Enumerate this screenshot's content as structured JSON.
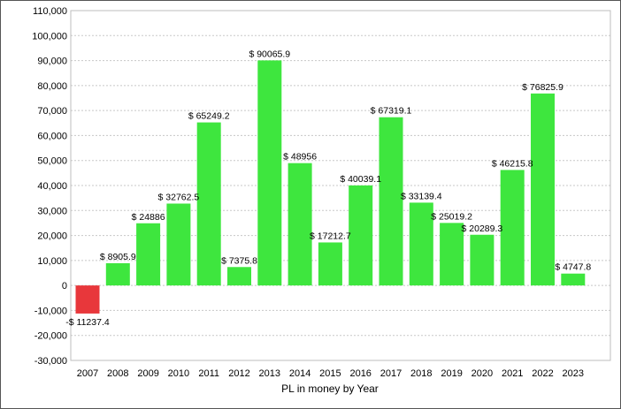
{
  "chart_data": {
    "type": "bar",
    "title": "",
    "xlabel": "PL in money by Year",
    "ylabel": "",
    "ylim": [
      -30000,
      110000
    ],
    "ytick_step": 10000,
    "yticks": [
      "-30,000",
      "-20,000",
      "-10,000",
      "0",
      "10,000",
      "20,000",
      "30,000",
      "40,000",
      "50,000",
      "60,000",
      "70,000",
      "80,000",
      "90,000",
      "100,000",
      "110,000"
    ],
    "grid": true,
    "legend": "none",
    "colors": {
      "positive": "#3ee63e",
      "negative": "#e8373b"
    },
    "categories": [
      "2007",
      "2008",
      "2009",
      "2010",
      "2011",
      "2012",
      "2013",
      "2014",
      "2015",
      "2016",
      "2017",
      "2018",
      "2019",
      "2020",
      "2021",
      "2022",
      "2023"
    ],
    "values": [
      -11237.4,
      8905.9,
      24886,
      32762.5,
      65249.2,
      7375.8,
      90065.9,
      48956,
      17212.7,
      40039.1,
      67319.1,
      33139.4,
      25019.2,
      20289.3,
      46215.8,
      76825.9,
      4747.8
    ],
    "data_labels": [
      "-$ 11237.4",
      "$ 8905.9",
      "$ 24886",
      "$ 32762.5",
      "$ 65249.2",
      "$ 7375.8",
      "$ 90065.9",
      "$ 48956",
      "$ 17212.7",
      "$ 40039.1",
      "$ 67319.1",
      "$ 33139.4",
      "$ 25019.2",
      "$ 20289.3",
      "$ 46215.8",
      "$ 76825.9",
      "$ 4747.8"
    ]
  }
}
